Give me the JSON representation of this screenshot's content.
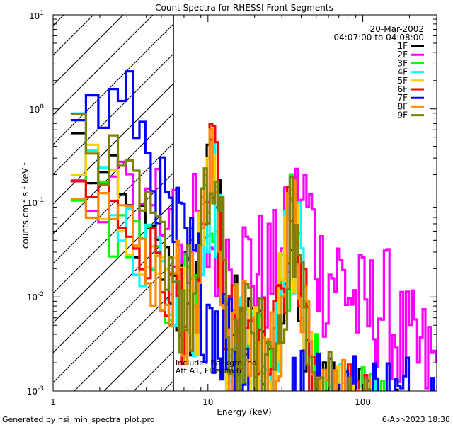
{
  "chart_data": {
    "type": "line",
    "title": "Count Spectra for RHESSI Front Segments",
    "xlabel": "Energy (keV)",
    "ylabel": "counts cm",
    "ylabel_sup1": "-2",
    "ylabel_mid": " s",
    "ylabel_sup2": "-1",
    "ylabel_end": " keV",
    "ylabel_sup3": "-1",
    "xscale": "log",
    "yscale": "log",
    "xlim": [
      1.0,
      300.0
    ],
    "ylim": [
      0.001,
      10.0
    ],
    "x_tick_labels": [
      "1",
      "10",
      "100"
    ],
    "y_tick_labels": [
      {
        "base": "10",
        "exp": "-3"
      },
      {
        "base": "10",
        "exp": "-2"
      },
      {
        "base": "10",
        "exp": "-1"
      },
      {
        "base": "10",
        "exp": "0"
      },
      {
        "base": "10",
        "exp": "1"
      }
    ],
    "date": "20-Mar-2002",
    "time_range": "04:07:00 to 04:08:00",
    "shaded_region_max_keV": 6.0,
    "annotation_line1": "Includes Background",
    "annotation_line2": "Att A1, FDecim 6",
    "legend_position": "top-right",
    "series": [
      {
        "name": "1F",
        "color": "#000000",
        "base": 0.4
      },
      {
        "name": "2F",
        "color": "#ff00ff",
        "base": 0.1
      },
      {
        "name": "3F",
        "color": "#00ff00",
        "base": 0.25
      },
      {
        "name": "4F",
        "color": "#00ffff",
        "base": 0.33
      },
      {
        "name": "5F",
        "color": "#ffcc00",
        "base": 0.3
      },
      {
        "name": "6F",
        "color": "#ff0000",
        "base": 0.3
      },
      {
        "name": "7F",
        "color": "#0000ff",
        "base": 1.0
      },
      {
        "name": "8F",
        "color": "#ff8800",
        "base": 0.27
      },
      {
        "name": "9F",
        "color": "#808000",
        "base": 0.65
      }
    ]
  },
  "footer": {
    "generated_by": "Generated by hsi_min_spectra_plot.pro",
    "timestamp": "6-Apr-2023 18:38"
  }
}
